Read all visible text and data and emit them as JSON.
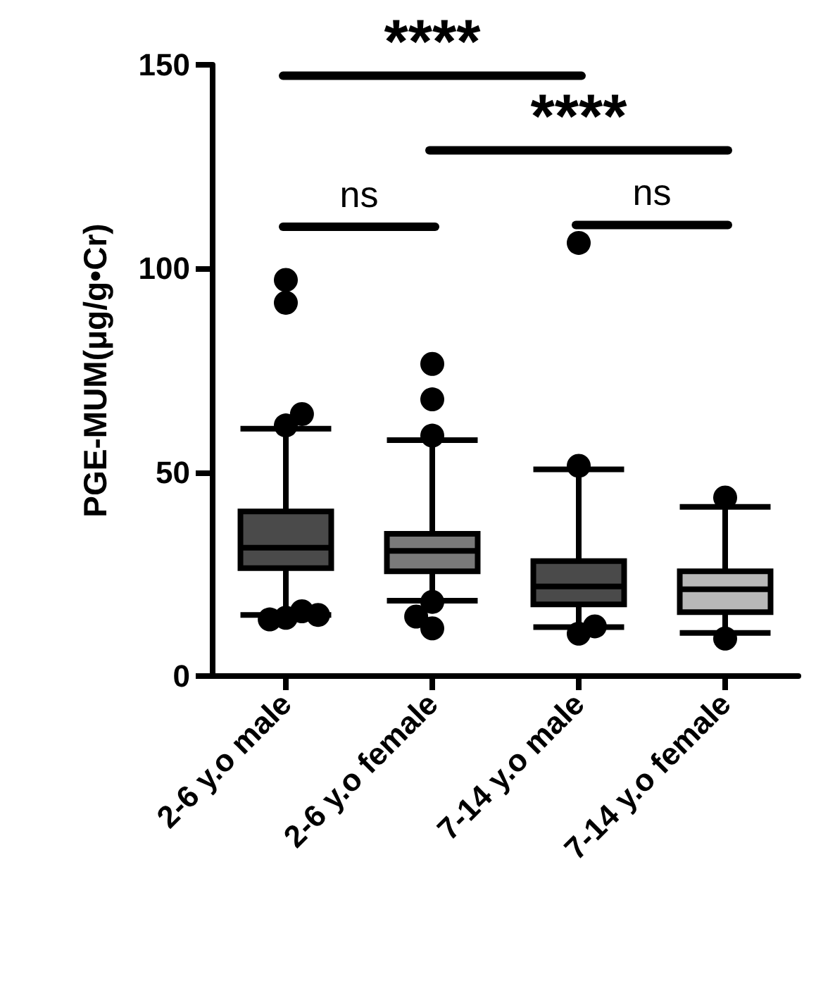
{
  "chart_data": {
    "type": "box",
    "ylabel": "PGE-MUM(μg/g•Cr)",
    "categories": [
      "2-6 y.o male",
      "2-6 y.o female",
      "7-14 y.o male",
      "7-14 y.o female"
    ],
    "colors": [
      "#4a4a4a",
      "#7a7a7a",
      "#4a4a4a",
      "#b8b8b8"
    ],
    "boxes": [
      {
        "low": 15,
        "q1": 26.5,
        "median": 31.5,
        "q3": 40.4,
        "high": 60.7,
        "outliers": [
          91.6,
          97.2,
          61.5,
          64.3,
          14.3,
          15.9,
          13.9,
          15
        ]
      },
      {
        "low": 18.5,
        "q1": 25.7,
        "median": 30.7,
        "q3": 34.9,
        "high": 57.9,
        "outliers": [
          76.6,
          67.9,
          59,
          18.2,
          11.7,
          14.6
        ]
      },
      {
        "low": 12,
        "q1": 17.6,
        "median": 22,
        "q3": 28.2,
        "high": 50.7,
        "outliers": [
          106.3,
          51.6,
          10.4,
          12.2
        ]
      },
      {
        "low": 10.6,
        "q1": 15.7,
        "median": 21.3,
        "q3": 25.7,
        "high": 41.5,
        "outliers": [
          43.8,
          9.2
        ]
      }
    ],
    "ylim": [
      0,
      150
    ],
    "yticks": [
      0,
      50,
      100,
      150
    ],
    "grid": false,
    "marker": "circle",
    "annotations": [
      "****",
      "****",
      "ns",
      "ns"
    ]
  }
}
